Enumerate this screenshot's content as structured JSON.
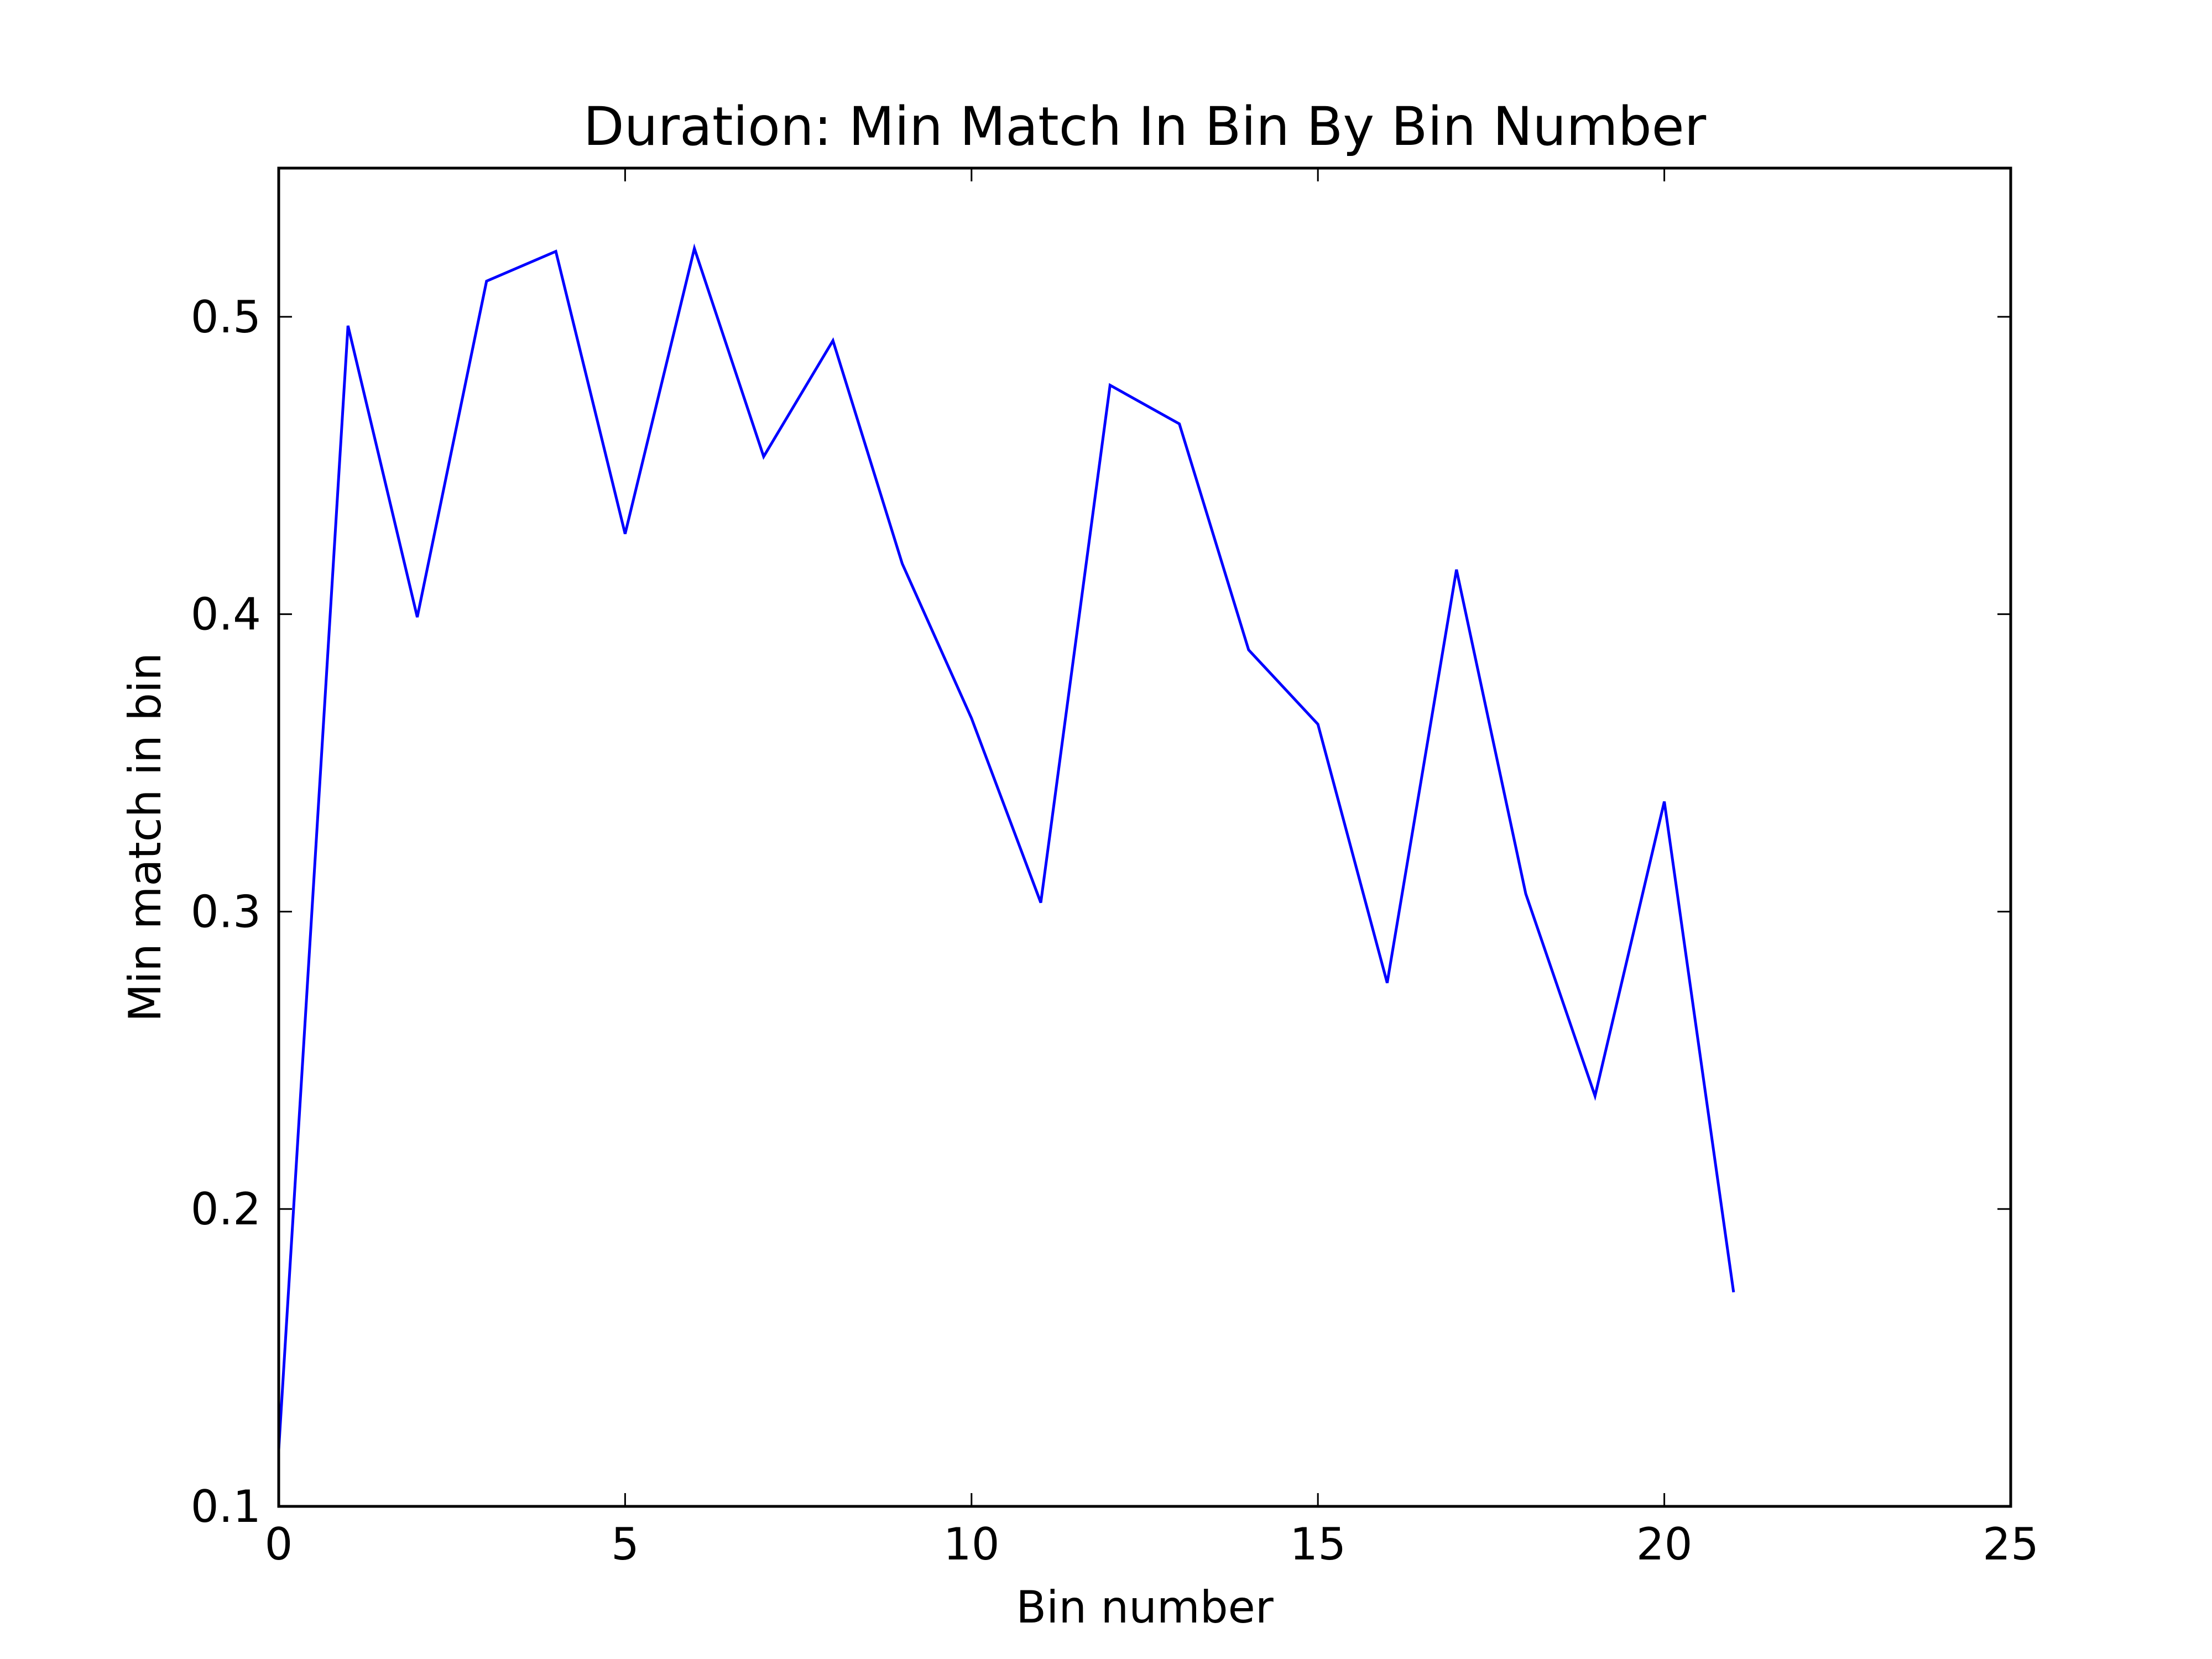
{
  "chart_data": {
    "type": "line",
    "title": "Duration: Min Match In Bin By Bin Number",
    "xlabel": "Bin number",
    "ylabel": "Min match in bin",
    "xlim": [
      0,
      25
    ],
    "ylim": [
      0.1,
      0.55
    ],
    "xticks": [
      0,
      5,
      10,
      15,
      20,
      25
    ],
    "yticks": [
      0.1,
      0.2,
      0.3,
      0.4,
      0.5
    ],
    "xtick_labels": [
      "0",
      "5",
      "10",
      "15",
      "20",
      "25"
    ],
    "ytick_labels": [
      "0.1",
      "0.2",
      "0.3",
      "0.4",
      "0.5"
    ],
    "grid": false,
    "line_color": "#0000ff",
    "x": [
      0,
      1,
      2,
      3,
      4,
      5,
      6,
      7,
      8,
      9,
      10,
      11,
      12,
      13,
      14,
      15,
      16,
      17,
      18,
      19,
      20,
      21
    ],
    "series": [
      {
        "values": [
          0.119,
          0.497,
          0.399,
          0.512,
          0.522,
          0.427,
          0.523,
          0.453,
          0.492,
          0.417,
          0.365,
          0.303,
          0.477,
          0.464,
          0.388,
          0.363,
          0.276,
          0.415,
          0.306,
          0.238,
          0.337,
          0.172
        ]
      }
    ]
  }
}
